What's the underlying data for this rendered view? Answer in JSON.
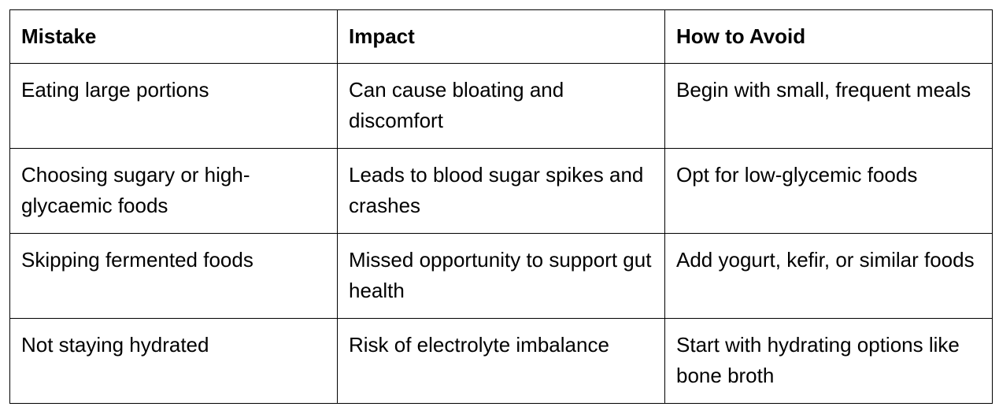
{
  "table": {
    "header": [
      "Mistake",
      "Impact",
      "How to Avoid"
    ],
    "rows": [
      [
        "Eating large portions",
        "Can cause bloating and discomfort",
        "Begin with small, frequent meals"
      ],
      [
        "Choosing sugary or high-glycaemic foods",
        "Leads to blood sugar spikes and crashes",
        "Opt for low-glycemic foods"
      ],
      [
        "Skipping fermented foods",
        "Missed opportunity to support gut health",
        "Add yogurt, kefir, or similar foods"
      ],
      [
        "Not staying hydrated",
        "Risk of electrolyte imbalance",
        "Start with hydrating options like bone broth"
      ]
    ]
  }
}
